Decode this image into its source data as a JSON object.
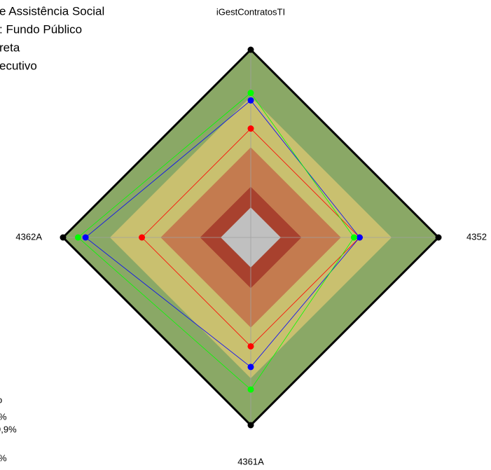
{
  "chart_data": {
    "type": "radar",
    "axes": [
      "iGestContratosTI",
      "4352",
      "4361A",
      "4362A"
    ],
    "rlim": [
      0,
      100
    ],
    "bands": [
      {
        "value": 100,
        "color": "#8aa866"
      },
      {
        "value": 75,
        "color": "#c9c06f"
      },
      {
        "value": 48,
        "color": "#c47b4f"
      },
      {
        "value": 27,
        "color": "#a8412e"
      },
      {
        "value": 16,
        "color": "#c0c0c0"
      }
    ],
    "series": [
      {
        "color": "#ff0000",
        "values": [
          58,
          58,
          58,
          58
        ]
      },
      {
        "color": "#0000ff",
        "values": [
          73,
          58,
          69,
          88
        ]
      },
      {
        "color": "#00ff00",
        "values": [
          77,
          55,
          81,
          92
        ]
      }
    ],
    "annotations": [
      "e Assistência Social",
      ": Fundo Público",
      "reta",
      "ecutivo",
      "o",
      "%",
      "9,9%",
      "%"
    ]
  }
}
